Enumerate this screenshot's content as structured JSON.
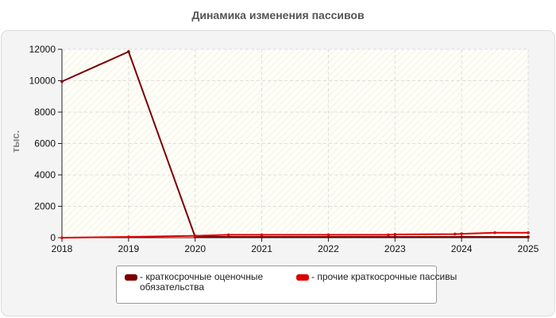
{
  "chart_data": {
    "type": "line",
    "title": "Динамика изменения пассивов",
    "ylabel": "тыс.",
    "xlabel": "",
    "x": [
      "2018",
      "2019",
      "2020",
      "2021",
      "2022",
      "2023",
      "2024",
      "2025"
    ],
    "x_numeric": [
      2018,
      2019,
      2020,
      2021,
      2022,
      2023,
      2024,
      2025
    ],
    "xlim": [
      2018,
      2025
    ],
    "ylim": [
      0,
      12000
    ],
    "yticks": [
      0,
      2000,
      4000,
      6000,
      8000,
      10000,
      12000
    ],
    "ytick_labels": [
      "0",
      "2000",
      "4000",
      "6000",
      "8000",
      "10000",
      "12000"
    ],
    "grid": true,
    "legend_position": "bottom",
    "series": [
      {
        "name": "- краткосрочные оценочные обязательства",
        "color": "#7a0000",
        "points": [
          {
            "x": 2018,
            "y": 9950
          },
          {
            "x": 2019,
            "y": 11850
          },
          {
            "x": 2020,
            "y": 50
          },
          {
            "x": 2021,
            "y": 50
          },
          {
            "x": 2022,
            "y": 50
          },
          {
            "x": 2023,
            "y": 50
          },
          {
            "x": 2024,
            "y": 50
          },
          {
            "x": 2025,
            "y": 50
          }
        ]
      },
      {
        "name": "- прочие краткосрочные пассивы",
        "color": "#dd0000",
        "points": [
          {
            "x": 2018,
            "y": 0
          },
          {
            "x": 2019,
            "y": 50
          },
          {
            "x": 2020,
            "y": 120
          },
          {
            "x": 2020.5,
            "y": 180
          },
          {
            "x": 2021,
            "y": 180
          },
          {
            "x": 2022,
            "y": 180
          },
          {
            "x": 2022.9,
            "y": 180
          },
          {
            "x": 2023,
            "y": 210
          },
          {
            "x": 2023.9,
            "y": 230
          },
          {
            "x": 2024,
            "y": 250
          },
          {
            "x": 2024.5,
            "y": 320
          },
          {
            "x": 2025,
            "y": 320
          }
        ]
      }
    ]
  }
}
